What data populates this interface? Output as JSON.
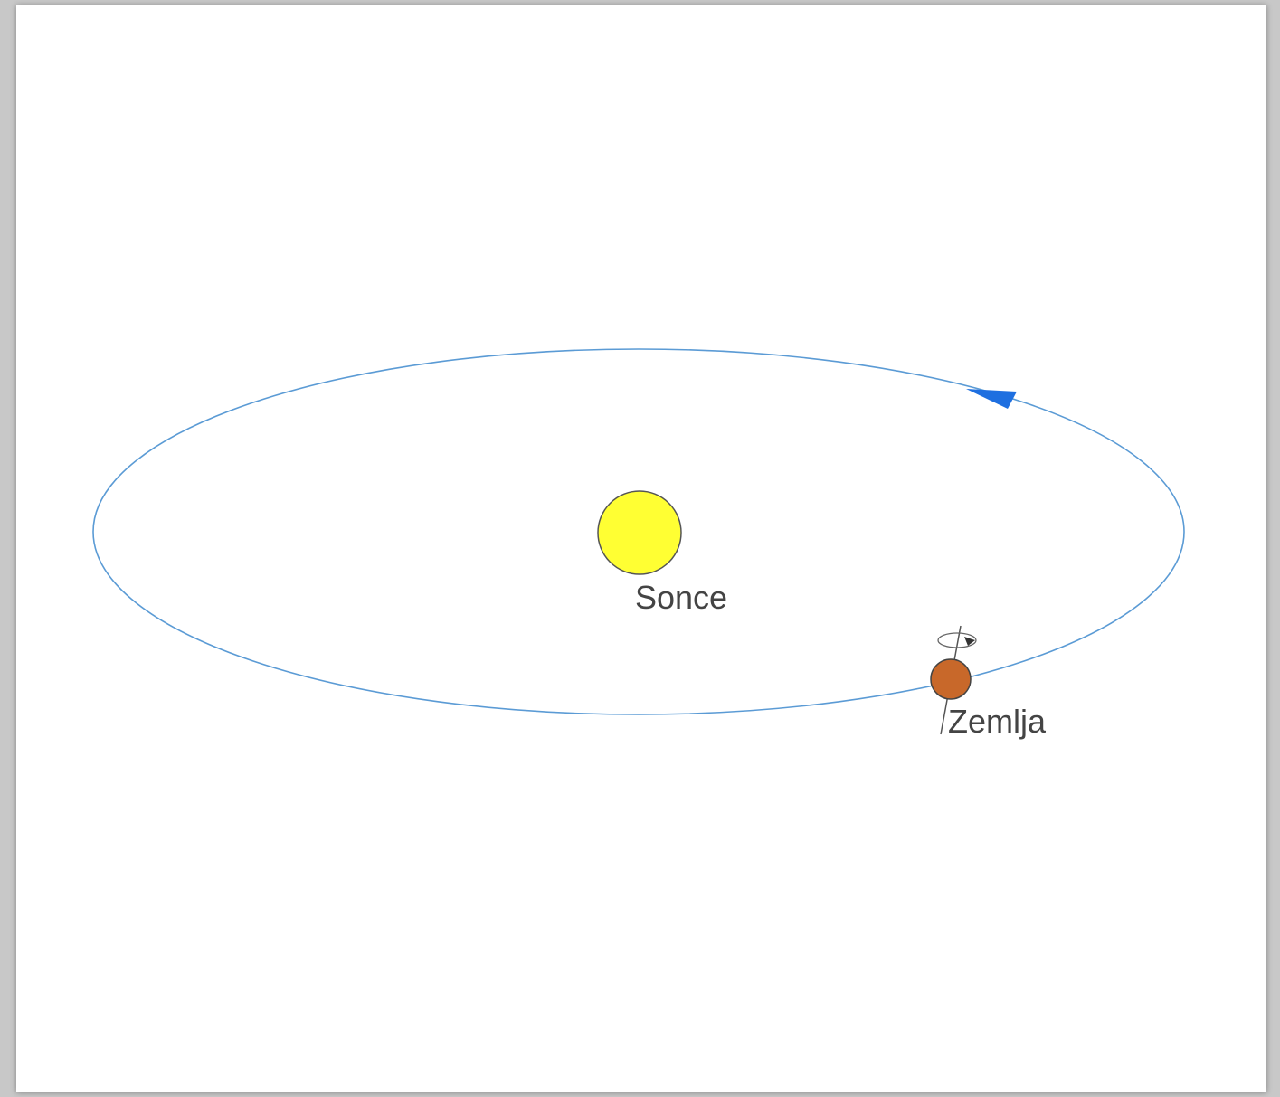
{
  "nodes": [
    {
      "label": "Sonce"
    },
    {
      "label": "Zemlja"
    }
  ]
}
